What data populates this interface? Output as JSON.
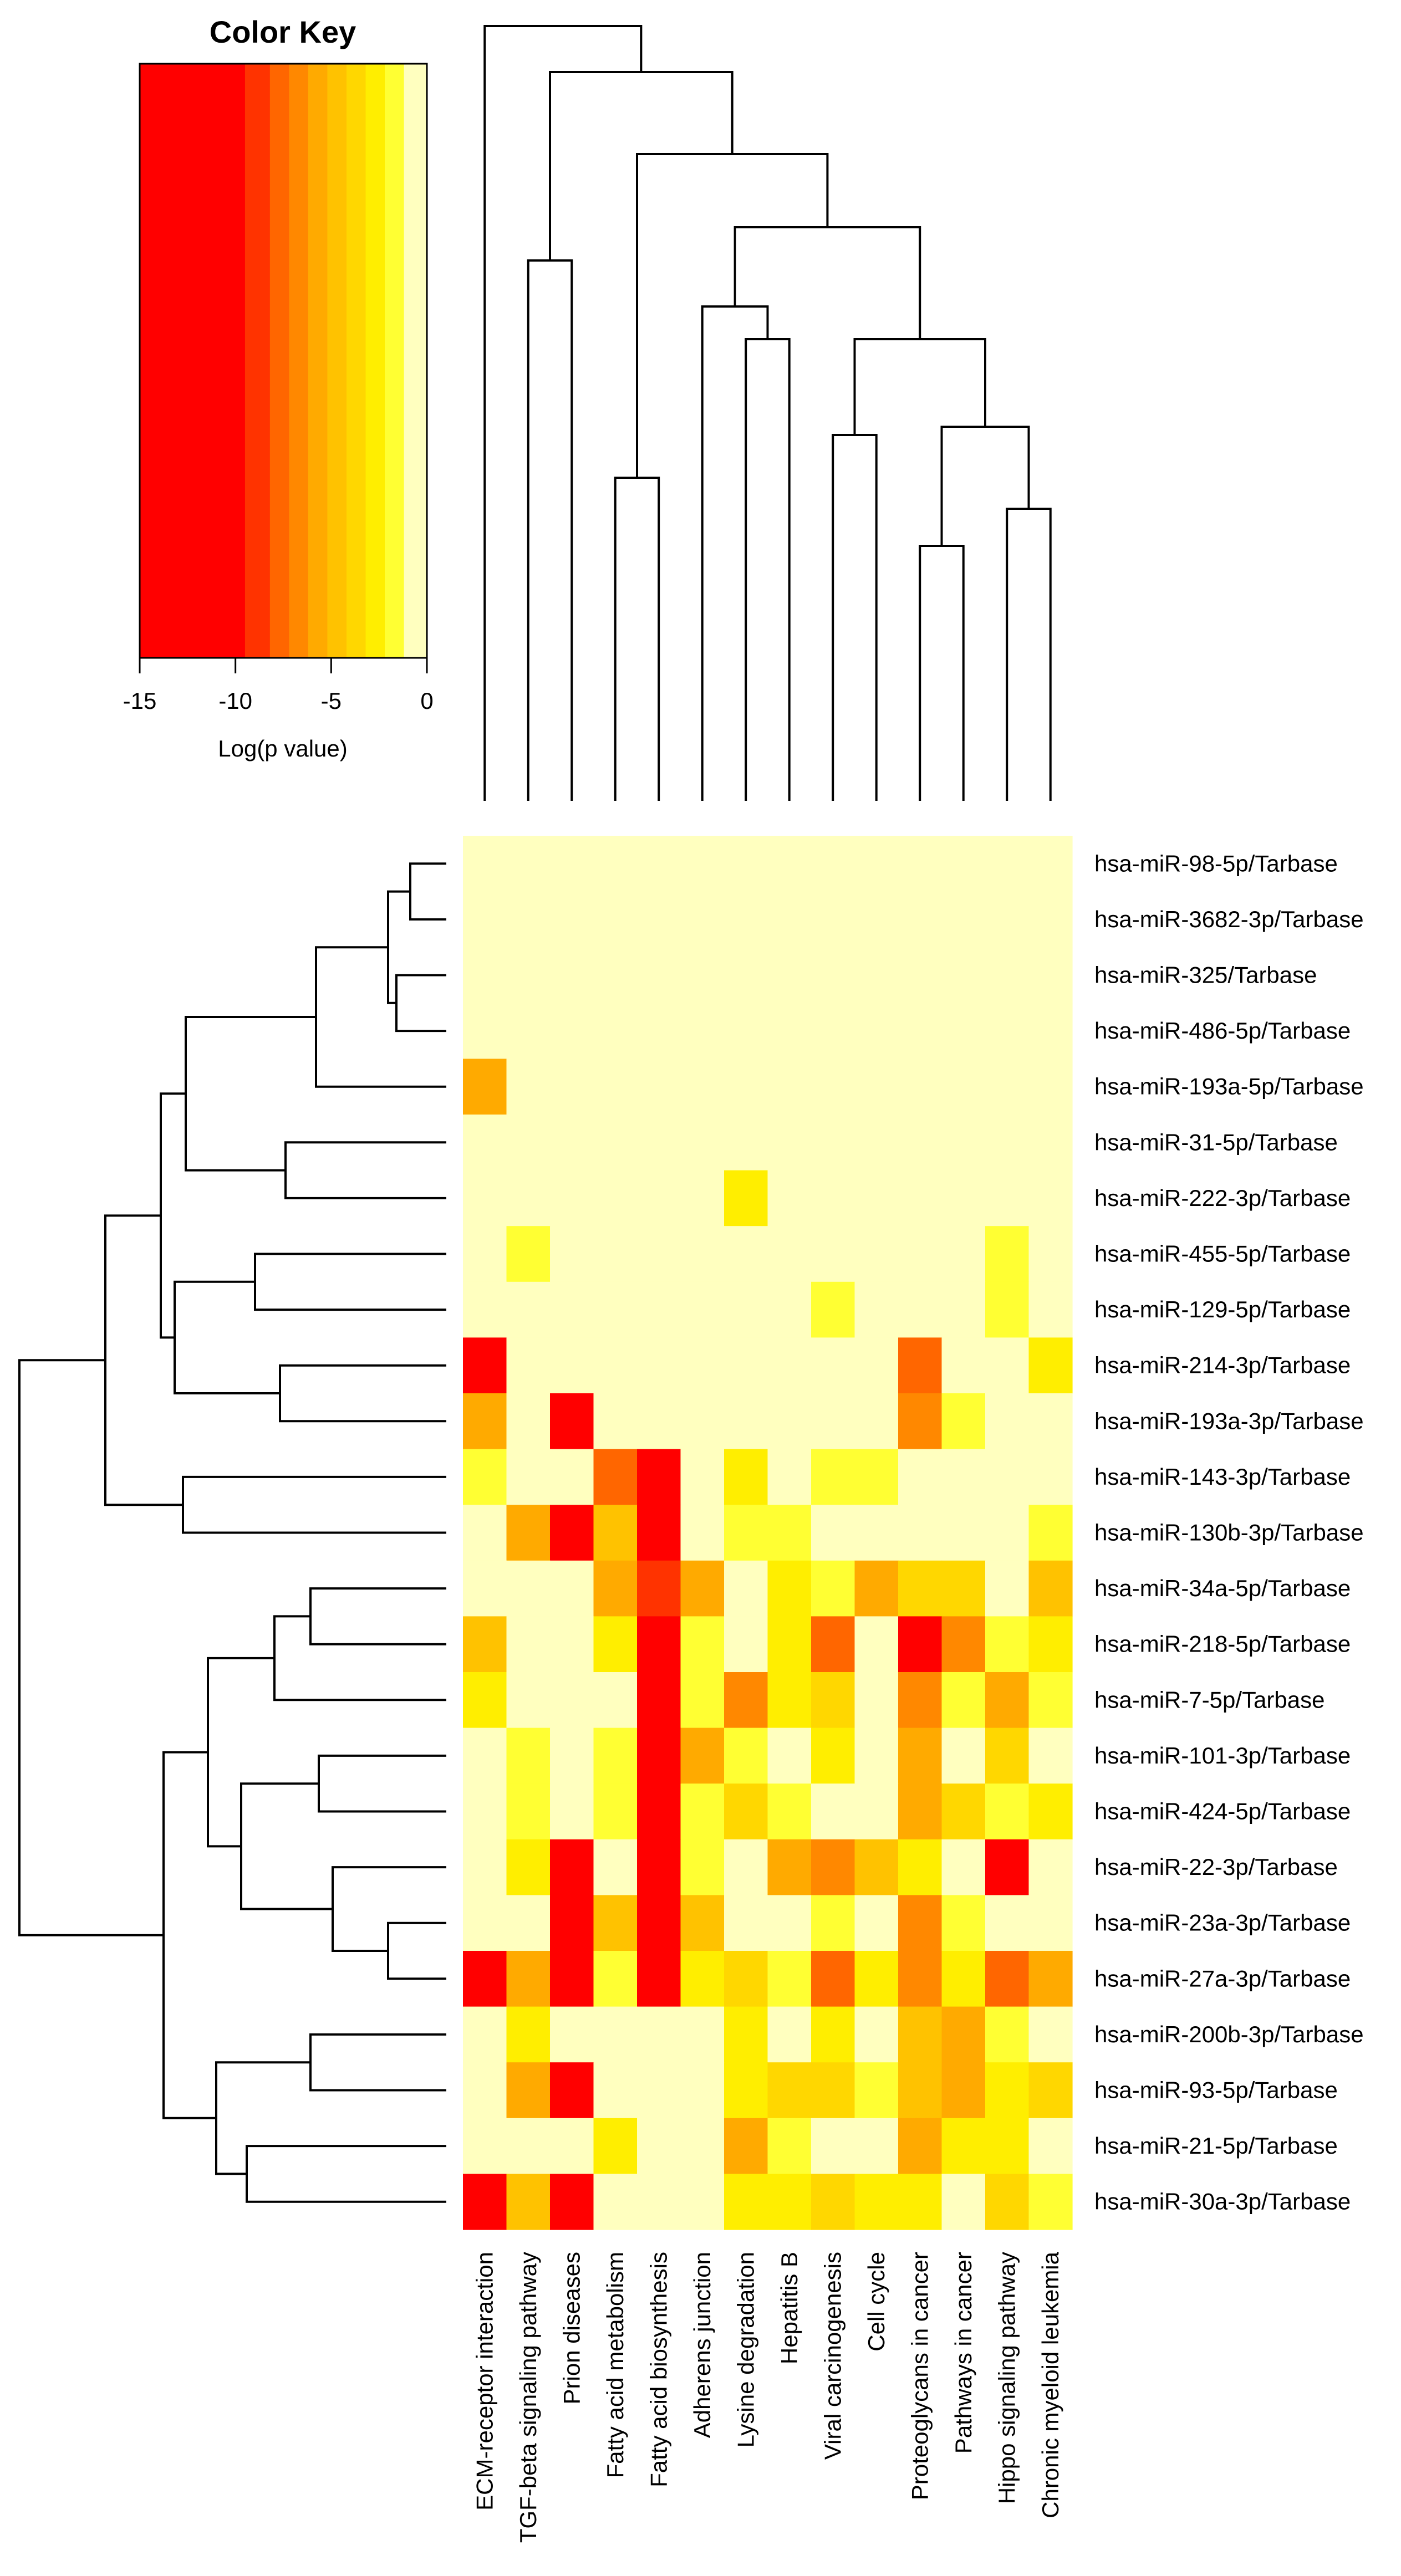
{
  "chart_data": {
    "type": "heatmap",
    "title": "",
    "colorkey": {
      "title": "Color Key",
      "xlabel": "Log(p value)",
      "range": [
        -15,
        0
      ],
      "ticks": [
        "-15",
        "-10",
        "-5",
        "0"
      ],
      "bands": [
        {
          "from": -15,
          "to": -9.5,
          "color": "#ff0000"
        },
        {
          "from": -9.5,
          "to": -8.2,
          "color": "#ff3300"
        },
        {
          "from": -8.2,
          "to": -7.2,
          "color": "#ff6600"
        },
        {
          "from": -7.2,
          "to": -6.2,
          "color": "#ff8800"
        },
        {
          "from": -6.2,
          "to": -5.2,
          "color": "#ffaa00"
        },
        {
          "from": -5.2,
          "to": -4.2,
          "color": "#ffc200"
        },
        {
          "from": -4.2,
          "to": -3.2,
          "color": "#ffd700"
        },
        {
          "from": -3.2,
          "to": -2.2,
          "color": "#ffee00"
        },
        {
          "from": -2.2,
          "to": -1.2,
          "color": "#ffff33"
        },
        {
          "from": -1.2,
          "to": 0,
          "color": "#ffffbf"
        }
      ]
    },
    "columns": [
      "ECM-receptor interaction",
      "TGF-beta signaling pathway",
      "Prion diseases",
      "Fatty acid metabolism",
      "Fatty acid biosynthesis",
      "Adherens junction",
      "Lysine degradation",
      "Hepatitis B",
      "Viral carcinogenesis",
      "Cell cycle",
      "Proteoglycans in cancer",
      "Pathways in cancer",
      "Hippo signaling pathway",
      "Chronic myeloid leukemia"
    ],
    "rows": [
      "hsa-miR-98-5p/Tarbase",
      "hsa-miR-3682-3p/Tarbase",
      "hsa-miR-325/Tarbase",
      "hsa-miR-486-5p/Tarbase",
      "hsa-miR-193a-5p/Tarbase",
      "hsa-miR-31-5p/Tarbase",
      "hsa-miR-222-3p/Tarbase",
      "hsa-miR-455-5p/Tarbase",
      "hsa-miR-129-5p/Tarbase",
      "hsa-miR-214-3p/Tarbase",
      "hsa-miR-193a-3p/Tarbase",
      "hsa-miR-143-3p/Tarbase",
      "hsa-miR-130b-3p/Tarbase",
      "hsa-miR-34a-5p/Tarbase",
      "hsa-miR-218-5p/Tarbase",
      "hsa-miR-7-5p/Tarbase",
      "hsa-miR-101-3p/Tarbase",
      "hsa-miR-424-5p/Tarbase",
      "hsa-miR-22-3p/Tarbase",
      "hsa-miR-23a-3p/Tarbase",
      "hsa-miR-27a-3p/Tarbase",
      "hsa-miR-200b-3p/Tarbase",
      "hsa-miR-93-5p/Tarbase",
      "hsa-miR-21-5p/Tarbase",
      "hsa-miR-30a-3p/Tarbase"
    ],
    "values": [
      [
        0,
        0,
        0,
        0,
        0,
        0,
        0,
        0,
        0,
        0,
        0,
        0,
        0,
        0
      ],
      [
        0,
        0,
        0,
        0,
        0,
        0,
        0,
        0,
        0,
        0,
        0,
        0,
        0,
        0
      ],
      [
        0,
        0,
        0,
        0,
        0,
        0,
        0,
        0,
        0,
        0,
        0,
        0,
        0,
        0
      ],
      [
        0,
        0,
        0,
        0,
        0,
        0,
        0,
        0,
        0,
        0,
        0,
        0,
        0,
        0
      ],
      [
        -6,
        0,
        0,
        0,
        0,
        0,
        0,
        0,
        0,
        0,
        0,
        0,
        0,
        0
      ],
      [
        0,
        0,
        0,
        0,
        0,
        0,
        0,
        0,
        0,
        0,
        0,
        0,
        0,
        0
      ],
      [
        0,
        0,
        0,
        0,
        0,
        0,
        -3,
        0,
        0,
        0,
        0,
        0,
        0,
        0
      ],
      [
        0,
        -2,
        0,
        0,
        0,
        0,
        0,
        0,
        0,
        0,
        0,
        0,
        -2,
        0
      ],
      [
        0,
        0,
        0,
        0,
        0,
        0,
        0,
        0,
        -2,
        0,
        0,
        0,
        -2,
        0
      ],
      [
        -12,
        0,
        0,
        0,
        0,
        0,
        0,
        0,
        0,
        0,
        -8,
        0,
        0,
        -3
      ],
      [
        -6,
        0,
        -12,
        0,
        0,
        0,
        0,
        0,
        0,
        0,
        -7,
        -2,
        0,
        0
      ],
      [
        -2,
        0,
        0,
        -8,
        -12,
        0,
        -3,
        0,
        -2,
        -2,
        0,
        0,
        0,
        0
      ],
      [
        0,
        -6,
        -12,
        -5,
        -12,
        0,
        -2,
        -2,
        0,
        0,
        0,
        0,
        0,
        -2
      ],
      [
        0,
        0,
        0,
        -6,
        -9,
        -6,
        0,
        -3,
        -2,
        -6,
        -4,
        -4,
        0,
        -5
      ],
      [
        -5,
        0,
        0,
        -3,
        -12,
        -2,
        0,
        -3,
        -8,
        0,
        -12,
        -7,
        -2,
        -3
      ],
      [
        -3,
        0,
        0,
        0,
        -12,
        -2,
        -7,
        -3,
        -4,
        0,
        -7,
        -2,
        -6,
        -2
      ],
      [
        0,
        -2,
        0,
        -2,
        -12,
        -6,
        -2,
        0,
        -3,
        0,
        -6,
        0,
        -4,
        0
      ],
      [
        0,
        -2,
        0,
        -2,
        -12,
        -2,
        -4,
        -2,
        0,
        0,
        -6,
        -4,
        -2,
        -3
      ],
      [
        0,
        -3,
        -12,
        0,
        -12,
        -2,
        0,
        -6,
        -7,
        -5,
        -3,
        0,
        -12,
        0
      ],
      [
        0,
        0,
        -12,
        -5,
        -12,
        -5,
        0,
        0,
        -2,
        0,
        -7,
        -2,
        0,
        0
      ],
      [
        -12,
        -6,
        -12,
        -2,
        -12,
        -3,
        -4,
        -2,
        -8,
        -3,
        -7,
        -3,
        -8,
        -6
      ],
      [
        0,
        -3,
        0,
        0,
        0,
        0,
        -3,
        0,
        -3,
        0,
        -5,
        -6,
        -2,
        0
      ],
      [
        0,
        -6,
        -12,
        0,
        0,
        0,
        -3,
        -4,
        -4,
        -2,
        -5,
        -6,
        -3,
        -4
      ],
      [
        0,
        0,
        0,
        -3,
        0,
        0,
        -6,
        -2,
        0,
        0,
        -6,
        -3,
        -3,
        0
      ],
      [
        -12,
        -5,
        -12,
        0,
        0,
        0,
        -3,
        -3,
        -4,
        -3,
        -3,
        0,
        -4,
        -2
      ]
    ]
  }
}
